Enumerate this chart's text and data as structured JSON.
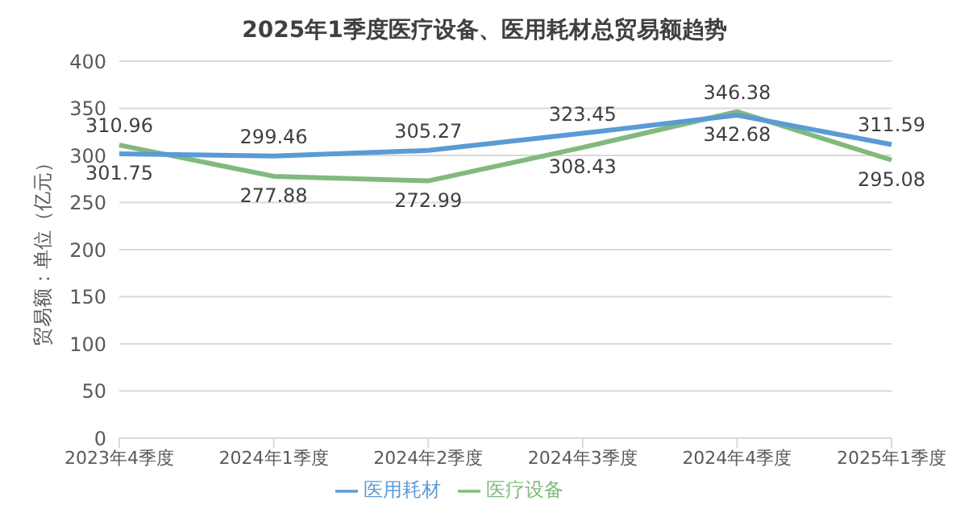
{
  "chart_data": {
    "type": "line",
    "title": "2025年1季度医疗设备、医用耗材总贸易额趋势",
    "ylabel": "贸易额：单位（亿元）",
    "categories": [
      "2023年4季度",
      "2024年1季度",
      "2024年2季度",
      "2024年3季度",
      "2024年4季度",
      "2025年1季度"
    ],
    "series": [
      {
        "name": "医疗设备",
        "color": "#82b97e",
        "values": [
          310.96,
          277.88,
          272.99,
          308.43,
          346.38,
          295.08
        ]
      },
      {
        "name": "医用耗材",
        "color": "#5b9bd5",
        "values": [
          301.75,
          299.46,
          305.27,
          323.45,
          342.68,
          311.59
        ]
      }
    ],
    "ylim": [
      0,
      400
    ],
    "yticks": [
      0,
      50,
      100,
      150,
      200,
      250,
      300,
      350,
      400
    ],
    "grid": "y",
    "legend": "bottom",
    "data_labels": true,
    "marker": "none",
    "line_style": "solid"
  }
}
